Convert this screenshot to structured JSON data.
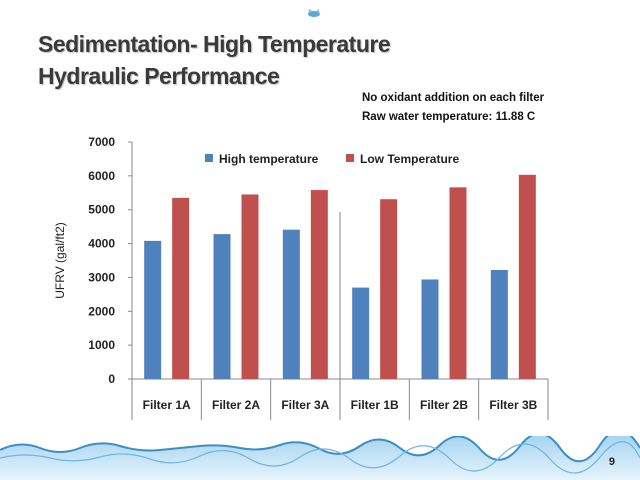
{
  "slide": {
    "title_line1": "Sedimentation- High Temperature",
    "title_line2": "Hydraulic Performance",
    "note_line1": "No oxidant addition on each filter",
    "note_line2": "Raw water temperature: 11.88 C",
    "page_number": "9"
  },
  "icons": {
    "top_decoration": "water-drop-icon",
    "footer_decoration": "water-wave-icon"
  },
  "colors": {
    "series_high": "#4f81bd",
    "series_low": "#c0504d",
    "wave": "#1f77b4"
  },
  "chart_data": {
    "type": "bar",
    "title": "",
    "xlabel": "",
    "ylabel": "UFRV (gal/ft2)",
    "categories": [
      "Filter 1A",
      "Filter 2A",
      "Filter 3A",
      "Filter 1B",
      "Filter 2B",
      "Filter 3B"
    ],
    "series": [
      {
        "name": "High temperature",
        "color": "#4f81bd",
        "values": [
          4080,
          4280,
          4410,
          2700,
          2940,
          3220
        ]
      },
      {
        "name": "Low Temperature",
        "color": "#c0504d",
        "values": [
          5350,
          5450,
          5580,
          5310,
          5660,
          6030
        ]
      }
    ],
    "ylim": [
      0,
      7000
    ],
    "yticks": [
      0,
      1000,
      2000,
      3000,
      4000,
      5000,
      6000,
      7000
    ],
    "legend_position": "top",
    "grid": false
  }
}
